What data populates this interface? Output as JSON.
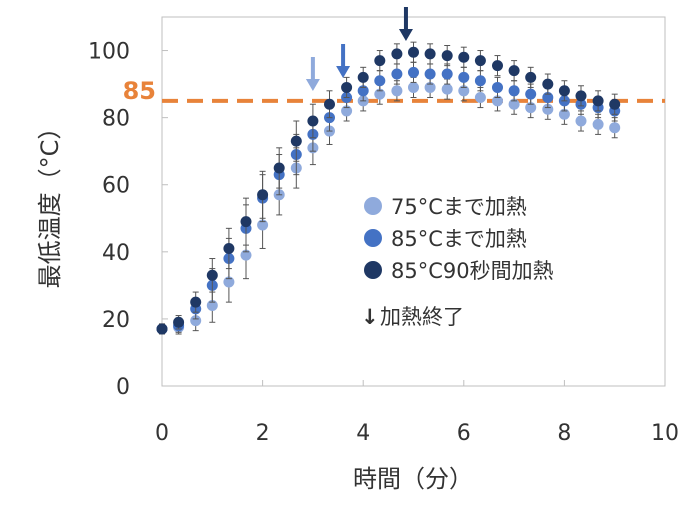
{
  "chart_data": {
    "type": "scatter",
    "xlabel": "時間（分）",
    "ylabel": "最低温度（°C）",
    "xlim": [
      0,
      10
    ],
    "ylim": [
      0,
      110
    ],
    "xticks": [
      "0",
      "2",
      "4",
      "6",
      "8",
      "10"
    ],
    "yticks": [
      "0",
      "20",
      "40",
      "60",
      "80",
      "100"
    ],
    "grid": false,
    "legend_position": "center-right",
    "reference_line": {
      "y": 85,
      "label": "85",
      "color": "#E8833A"
    },
    "series": [
      {
        "name": "75°Cまで加熱",
        "color": "#8FAADC",
        "x": [
          0,
          0.33,
          0.67,
          1,
          1.33,
          1.67,
          2,
          2.33,
          2.67,
          3,
          3.33,
          3.67,
          4,
          4.33,
          4.67,
          5,
          5.33,
          5.67,
          6,
          6.33,
          6.67,
          7,
          7.33,
          7.67,
          8,
          8.33,
          8.67,
          9
        ],
        "y": [
          17,
          17.5,
          19.5,
          24,
          31,
          39,
          48,
          57,
          65,
          71,
          76,
          82,
          85,
          87,
          88,
          89,
          89,
          88.5,
          88,
          86,
          85,
          84,
          83,
          82.5,
          81,
          79,
          78,
          77
        ],
        "err": [
          1.5,
          2,
          3,
          5,
          6,
          7,
          7,
          6,
          6,
          5,
          4,
          3,
          3,
          3,
          3,
          3,
          3,
          3,
          3,
          3,
          3,
          3,
          3,
          3,
          3,
          3,
          3,
          3
        ],
        "end_time": 3.0
      },
      {
        "name": "85°Cまで加熱",
        "color": "#4472C4",
        "x": [
          0,
          0.33,
          0.67,
          1,
          1.33,
          1.67,
          2,
          2.33,
          2.67,
          3,
          3.33,
          3.67,
          4,
          4.33,
          4.67,
          5,
          5.33,
          5.67,
          6,
          6.33,
          6.67,
          7,
          7.33,
          7.67,
          8,
          8.33,
          8.67,
          9
        ],
        "y": [
          17,
          18,
          23,
          30,
          38,
          47,
          56,
          63,
          69,
          75,
          80,
          86,
          88,
          91,
          93,
          93.5,
          93,
          93,
          92,
          91,
          89,
          88,
          87,
          86,
          85,
          84,
          83,
          82
        ],
        "err": [
          1.5,
          2,
          3,
          5,
          6,
          7,
          7,
          6,
          6,
          5,
          4,
          3,
          3,
          3,
          3,
          3,
          3,
          3,
          3,
          3,
          3,
          3,
          3,
          3,
          3,
          3,
          3,
          3
        ],
        "end_time": 3.6
      },
      {
        "name": "85°C90秒間加熱",
        "color": "#1F3864",
        "x": [
          0,
          0.33,
          0.67,
          1,
          1.33,
          1.67,
          2,
          2.33,
          2.67,
          3,
          3.33,
          3.67,
          4,
          4.33,
          4.67,
          5,
          5.33,
          5.67,
          6,
          6.33,
          6.67,
          7,
          7.33,
          7.67,
          8,
          8.33,
          8.67,
          9
        ],
        "y": [
          17,
          19,
          25,
          33,
          41,
          49,
          57,
          65,
          73,
          79,
          84,
          89,
          92,
          97,
          99,
          99.5,
          99,
          98.5,
          98,
          97,
          95.5,
          94,
          92,
          90,
          88,
          86.5,
          85,
          84
        ],
        "err": [
          1.5,
          2,
          3,
          5,
          6,
          7,
          7,
          6,
          6,
          5,
          4,
          3,
          3,
          3,
          3,
          3,
          3,
          3,
          3,
          3,
          3,
          3,
          3,
          3,
          3,
          3,
          3,
          3
        ],
        "end_time": 4.85
      }
    ],
    "annotation": {
      "symbol": "↓",
      "label": "加熱終了",
      "color": "#000000"
    }
  }
}
